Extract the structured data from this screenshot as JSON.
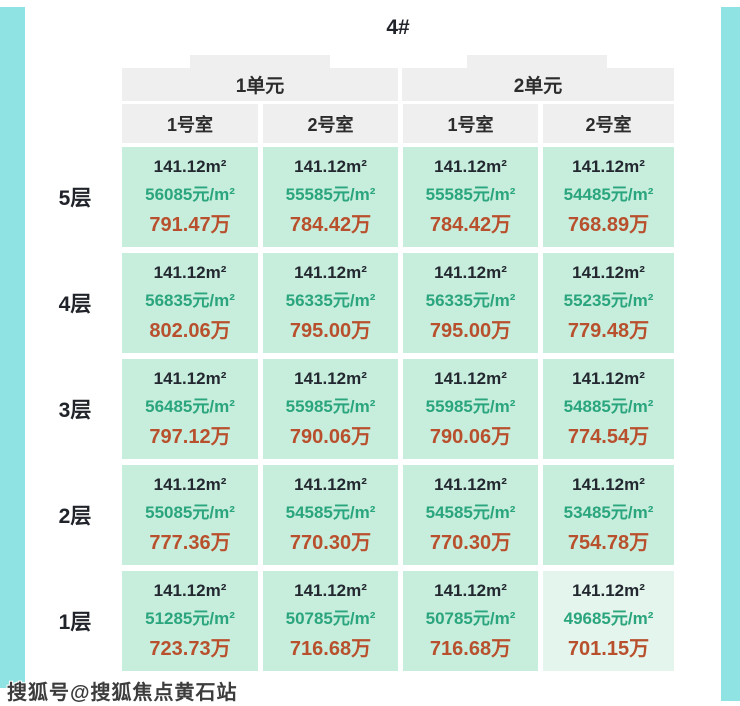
{
  "title": "4#",
  "watermark": "搜狐号@搜狐焦点黄石站",
  "chart_data": {
    "type": "table",
    "title": "4#",
    "units": [
      {
        "label": "1单元",
        "rooms": [
          "1号室",
          "2号室"
        ]
      },
      {
        "label": "2单元",
        "rooms": [
          "1号室",
          "2号室"
        ]
      }
    ],
    "floors": [
      "5层",
      "4层",
      "3层",
      "2层",
      "1层"
    ],
    "rows": [
      {
        "floor": "5层",
        "cells": [
          {
            "area": "141.12m²",
            "unit_price": "56085元/m²",
            "total": "791.47万"
          },
          {
            "area": "141.12m²",
            "unit_price": "55585元/m²",
            "total": "784.42万"
          },
          {
            "area": "141.12m²",
            "unit_price": "55585元/m²",
            "total": "784.42万"
          },
          {
            "area": "141.12m²",
            "unit_price": "54485元/m²",
            "total": "768.89万"
          }
        ]
      },
      {
        "floor": "4层",
        "cells": [
          {
            "area": "141.12m²",
            "unit_price": "56835元/m²",
            "total": "802.06万"
          },
          {
            "area": "141.12m²",
            "unit_price": "56335元/m²",
            "total": "795.00万"
          },
          {
            "area": "141.12m²",
            "unit_price": "56335元/m²",
            "total": "795.00万"
          },
          {
            "area": "141.12m²",
            "unit_price": "55235元/m²",
            "total": "779.48万"
          }
        ]
      },
      {
        "floor": "3层",
        "cells": [
          {
            "area": "141.12m²",
            "unit_price": "56485元/m²",
            "total": "797.12万"
          },
          {
            "area": "141.12m²",
            "unit_price": "55985元/m²",
            "total": "790.06万"
          },
          {
            "area": "141.12m²",
            "unit_price": "55985元/m²",
            "total": "790.06万"
          },
          {
            "area": "141.12m²",
            "unit_price": "54885元/m²",
            "total": "774.54万"
          }
        ]
      },
      {
        "floor": "2层",
        "cells": [
          {
            "area": "141.12m²",
            "unit_price": "55085元/m²",
            "total": "777.36万"
          },
          {
            "area": "141.12m²",
            "unit_price": "54585元/m²",
            "total": "770.30万"
          },
          {
            "area": "141.12m²",
            "unit_price": "54585元/m²",
            "total": "770.30万"
          },
          {
            "area": "141.12m²",
            "unit_price": "53485元/m²",
            "total": "754.78万"
          }
        ]
      },
      {
        "floor": "1层",
        "cells": [
          {
            "area": "141.12m²",
            "unit_price": "51285元/m²",
            "total": "723.73万"
          },
          {
            "area": "141.12m²",
            "unit_price": "50785元/m²",
            "total": "716.68万"
          },
          {
            "area": "141.12m²",
            "unit_price": "50785元/m²",
            "total": "716.68万"
          },
          {
            "area": "141.12m²",
            "unit_price": "49685元/m²",
            "total": "701.15万",
            "light": true
          }
        ]
      }
    ]
  },
  "colors": {
    "page_strip": "#8fe3e3",
    "header_bg": "#efefef",
    "cell_bg": "#c7eedd",
    "cell_bg_light": "#e3f5ec",
    "area_text": "#232830",
    "unit_price_text": "#2aa57d",
    "total_text": "#b8502d"
  }
}
